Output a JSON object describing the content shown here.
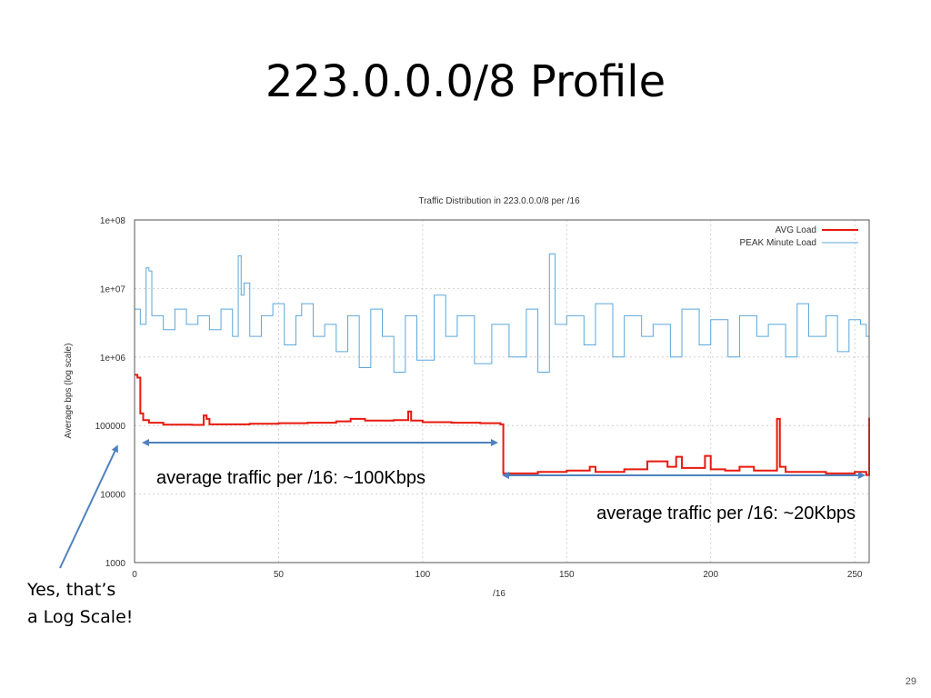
{
  "slide": {
    "title": "223.0.0.0/8 Profile",
    "number": "29",
    "note_line1": "Yes, that’s",
    "note_line2": "a Log Scale!"
  },
  "annotations": {
    "left": "average traffic per /16: ~100Kbps",
    "right": "average traffic per /16: ~20Kbps"
  },
  "colors": {
    "avg": "#e8190e",
    "peak": "#5aa7da",
    "arrow": "#4f81bd"
  },
  "chart_data": {
    "type": "line",
    "title": "Traffic Distribution in 223.0.0.0/8 per /16",
    "xlabel": "/16",
    "ylabel": "Average bps (log scale)",
    "xlim": [
      0,
      255
    ],
    "ylim": [
      1000,
      100000000
    ],
    "yscale": "log",
    "xticks": [
      0,
      50,
      100,
      150,
      200,
      250
    ],
    "yticks": [
      {
        "value": 1000,
        "label": "1000"
      },
      {
        "value": 10000,
        "label": "10000"
      },
      {
        "value": 100000,
        "label": "100000"
      },
      {
        "value": 1000000,
        "label": "1e+06"
      },
      {
        "value": 10000000,
        "label": "1e+07"
      },
      {
        "value": 100000000,
        "label": "1e+08"
      }
    ],
    "grid": true,
    "legend_position": "top-right",
    "series": [
      {
        "name": "AVG Load",
        "style": "step",
        "points": [
          [
            0,
            550000
          ],
          [
            1,
            500000
          ],
          [
            2,
            150000
          ],
          [
            3,
            120000
          ],
          [
            5,
            110000
          ],
          [
            10,
            103000
          ],
          [
            20,
            102000
          ],
          [
            24,
            140000
          ],
          [
            25,
            125000
          ],
          [
            26,
            104000
          ],
          [
            40,
            106000
          ],
          [
            50,
            108000
          ],
          [
            60,
            110000
          ],
          [
            70,
            115000
          ],
          [
            75,
            125000
          ],
          [
            80,
            118000
          ],
          [
            90,
            120000
          ],
          [
            95,
            160000
          ],
          [
            96,
            118000
          ],
          [
            100,
            112000
          ],
          [
            110,
            110000
          ],
          [
            120,
            108000
          ],
          [
            127,
            104000
          ],
          [
            128,
            20000
          ],
          [
            140,
            21000
          ],
          [
            150,
            22000
          ],
          [
            158,
            25000
          ],
          [
            160,
            21000
          ],
          [
            170,
            23000
          ],
          [
            178,
            30000
          ],
          [
            185,
            25000
          ],
          [
            188,
            35000
          ],
          [
            190,
            24000
          ],
          [
            198,
            36000
          ],
          [
            200,
            23000
          ],
          [
            205,
            22000
          ],
          [
            210,
            25000
          ],
          [
            215,
            22000
          ],
          [
            222,
            22000
          ],
          [
            223,
            125000
          ],
          [
            224,
            25000
          ],
          [
            226,
            21000
          ],
          [
            240,
            20000
          ],
          [
            250,
            21000
          ],
          [
            254,
            19000
          ],
          [
            255,
            130000
          ]
        ]
      },
      {
        "name": "PEAK Minute Load",
        "style": "step",
        "points": [
          [
            0,
            5000000
          ],
          [
            2,
            3000000
          ],
          [
            4,
            20000000
          ],
          [
            5,
            18000000
          ],
          [
            6,
            4000000
          ],
          [
            10,
            2500000
          ],
          [
            14,
            5000000
          ],
          [
            18,
            3000000
          ],
          [
            22,
            4000000
          ],
          [
            26,
            2500000
          ],
          [
            30,
            5000000
          ],
          [
            34,
            2000000
          ],
          [
            36,
            30000000
          ],
          [
            37,
            8000000
          ],
          [
            38,
            12000000
          ],
          [
            40,
            2000000
          ],
          [
            44,
            4000000
          ],
          [
            48,
            6000000
          ],
          [
            52,
            1500000
          ],
          [
            56,
            4000000
          ],
          [
            58,
            6000000
          ],
          [
            62,
            2000000
          ],
          [
            66,
            3000000
          ],
          [
            70,
            1200000
          ],
          [
            74,
            4000000
          ],
          [
            78,
            700000
          ],
          [
            82,
            5000000
          ],
          [
            86,
            2000000
          ],
          [
            90,
            600000
          ],
          [
            94,
            4000000
          ],
          [
            98,
            900000
          ],
          [
            104,
            8000000
          ],
          [
            108,
            2000000
          ],
          [
            112,
            4000000
          ],
          [
            118,
            800000
          ],
          [
            124,
            3000000
          ],
          [
            130,
            1000000
          ],
          [
            136,
            5000000
          ],
          [
            140,
            600000
          ],
          [
            144,
            32000000
          ],
          [
            146,
            3000000
          ],
          [
            150,
            4000000
          ],
          [
            156,
            1500000
          ],
          [
            160,
            6000000
          ],
          [
            166,
            1000000
          ],
          [
            170,
            4000000
          ],
          [
            176,
            2000000
          ],
          [
            180,
            3000000
          ],
          [
            186,
            1000000
          ],
          [
            190,
            5000000
          ],
          [
            196,
            1500000
          ],
          [
            200,
            3500000
          ],
          [
            206,
            1000000
          ],
          [
            210,
            4000000
          ],
          [
            216,
            2000000
          ],
          [
            220,
            3000000
          ],
          [
            226,
            1000000
          ],
          [
            230,
            6000000
          ],
          [
            234,
            2000000
          ],
          [
            240,
            4000000
          ],
          [
            244,
            1200000
          ],
          [
            248,
            3500000
          ],
          [
            252,
            3000000
          ],
          [
            254,
            2000000
          ],
          [
            255,
            2500000
          ]
        ]
      }
    ]
  }
}
